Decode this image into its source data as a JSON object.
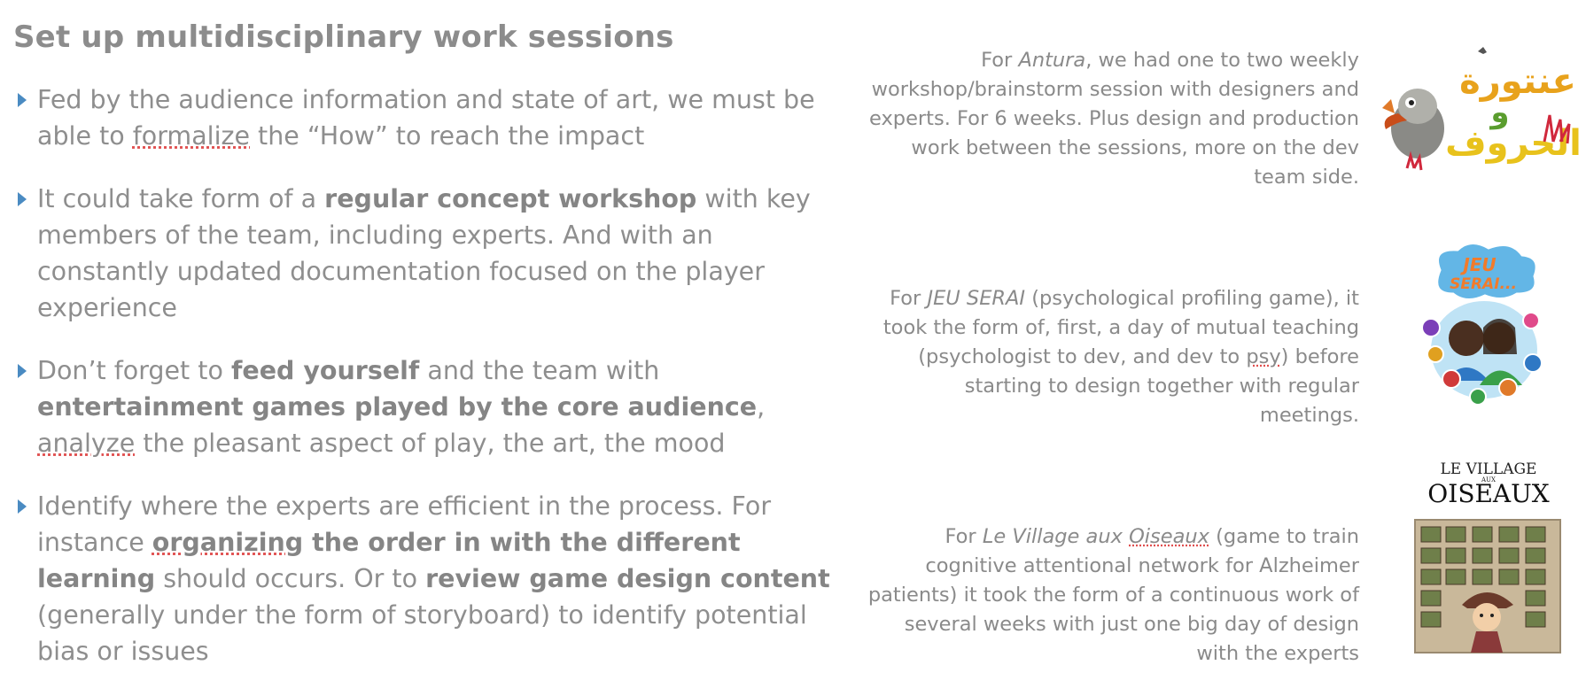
{
  "slide": {
    "title": "Set up multidisciplinary work sessions",
    "bullets": [
      {
        "parts": [
          {
            "t": "Fed by the audience information and state of art, we must be able to "
          },
          {
            "t": "formalize",
            "sq": true
          },
          {
            "t": " the “How” to reach the impact"
          }
        ]
      },
      {
        "parts": [
          {
            "t": "It could take form of a "
          },
          {
            "t": "regular concept workshop",
            "b": true
          },
          {
            "t": " with key members of the team, including experts.  And with an constantly updated documentation focused on the player experience"
          }
        ]
      },
      {
        "parts": [
          {
            "t": "Don’t forget to "
          },
          {
            "t": "feed yourself",
            "b": true
          },
          {
            "t": " and the team with "
          },
          {
            "t": "entertainment games played by the core audience",
            "b": true
          },
          {
            "t": ", "
          },
          {
            "t": "analyze",
            "sq": true
          },
          {
            "t": " the pleasant aspect of play, the art, the mood"
          }
        ]
      },
      {
        "parts": [
          {
            "t": "Identify where the experts are efficient in the process.  For instance "
          },
          {
            "t": "organizing",
            "b": true,
            "sq": true
          },
          {
            "t": " the order in with the different learning",
            "b": true
          },
          {
            "t": " should occurs.  Or to "
          },
          {
            "t": "review game design content",
            "b": true
          },
          {
            "t": " (generally under the form of storyboard) to identify potential bias or issues"
          }
        ]
      }
    ],
    "cases": [
      {
        "parts": [
          {
            "t": "For "
          },
          {
            "t": "Antura",
            "i": true
          },
          {
            "t": ", we had one to two weekly workshop/brainstorm session with designers and experts. For 6 weeks. Plus design and production work between the sessions, more on the dev team side."
          }
        ]
      },
      {
        "parts": [
          {
            "t": "For "
          },
          {
            "t": "JEU SERAI",
            "i": true
          },
          {
            "t": " (psychological profiling game), it took the form of, first, a day of mutual teaching (psychologist to dev, and dev to "
          },
          {
            "t": "psy",
            "sq": true
          },
          {
            "t": ") before starting to design together with regular meetings."
          }
        ]
      },
      {
        "parts": [
          {
            "t": "For "
          },
          {
            "t": "Le Village aux ",
            "i": true
          },
          {
            "t": "Oiseaux",
            "i": true,
            "sq": true
          },
          {
            "t": " (game to train cognitive attentional network for Alzheimer patients) it took the form of a continuous work of several weeks with just one big day of design with the experts"
          }
        ]
      }
    ],
    "logos": {
      "antura": {
        "text_line1": "عنتورة",
        "text_line2": "و",
        "text_line3": "الحروف"
      },
      "jeuserai": {
        "line1": "JEU",
        "line2": "SERAI..."
      },
      "village": {
        "line1": "LE VILLAGE",
        "line2": "AUX",
        "line3": "OISEAUX"
      }
    }
  }
}
